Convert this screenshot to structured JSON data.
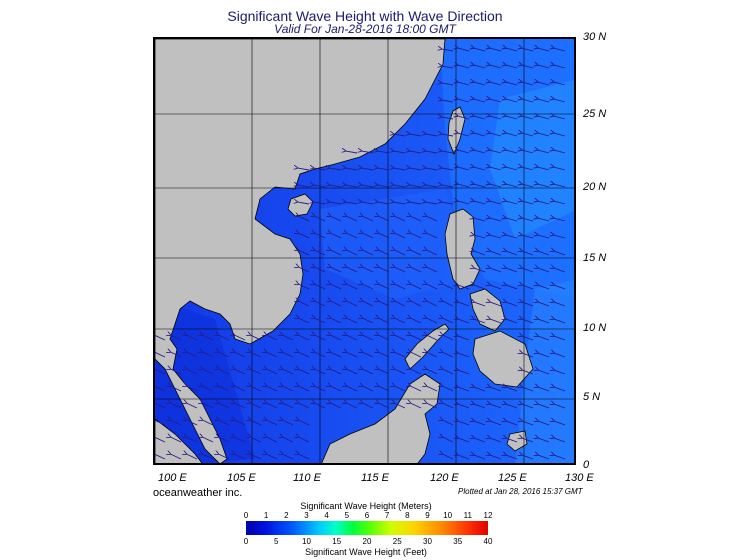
{
  "title": "Significant Wave Height with Wave Direction",
  "subtitle": "Valid For Jan-28-2016 18:00 GMT",
  "lat_labels": [
    "30 N",
    "25 N",
    "20 N",
    "15 N",
    "10 N",
    "5 N",
    "0"
  ],
  "lon_labels": [
    "100 E",
    "105 E",
    "110 E",
    "115 E",
    "120 E",
    "125 E",
    "130 E"
  ],
  "credit": "oceanweather inc.",
  "plotted": "Plotted at Jan 28, 2016 15:37 GMT",
  "colorbar": {
    "title_meters": "Significant Wave Height (Meters)",
    "title_feet": "Significant Wave Height (Feet)",
    "meters_ticks": [
      "0",
      "1",
      "2",
      "3",
      "4",
      "5",
      "6",
      "7",
      "8",
      "9",
      "10",
      "11",
      "12"
    ],
    "feet_ticks": [
      "0",
      "5",
      "10",
      "15",
      "20",
      "25",
      "30",
      "35",
      "40"
    ]
  },
  "colors": {
    "land": "#c0c0c0",
    "sea": "#1a4ff0",
    "arrows": "#2a1a80",
    "title": "#1a1a6e"
  }
}
